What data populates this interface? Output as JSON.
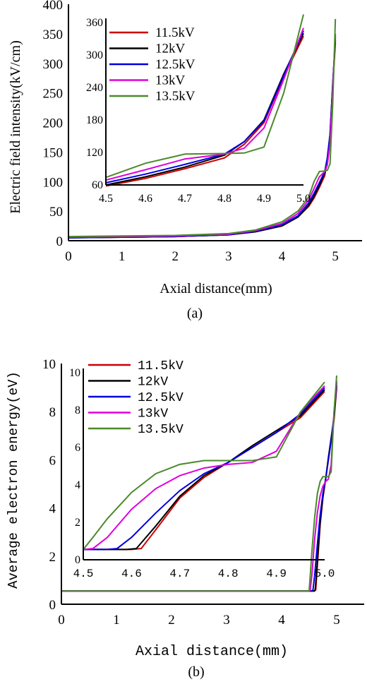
{
  "chart_data": [
    {
      "id": "a",
      "type": "line",
      "caption": "(a)",
      "xlabel": "Axial distance(mm)",
      "ylabel": "Electric field intensity(kV/cm)",
      "xlim": [
        0,
        5.5
      ],
      "ylim": [
        0,
        400
      ],
      "xticks": [
        0,
        1,
        2,
        3,
        4,
        5
      ],
      "yticks": [
        0,
        50,
        100,
        150,
        200,
        250,
        300,
        350,
        400
      ],
      "grid": false,
      "legend_position": "inside-inset",
      "series": [
        {
          "name": "11.5kV",
          "color": "#cc0000",
          "x": [
            0,
            1,
            2,
            3,
            3.5,
            4,
            4.3,
            4.5,
            4.6,
            4.7,
            4.8,
            4.85,
            4.9,
            4.95,
            5.0
          ],
          "y": [
            5,
            6,
            7,
            10,
            15,
            25,
            40,
            58,
            72,
            90,
            110,
            135,
            175,
            260,
            335
          ]
        },
        {
          "name": "12kV",
          "color": "#000000",
          "x": [
            0,
            1,
            2,
            3,
            3.5,
            4,
            4.3,
            4.5,
            4.6,
            4.7,
            4.8,
            4.85,
            4.9,
            4.95,
            5.0
          ],
          "y": [
            5,
            6,
            7,
            10,
            15,
            25,
            40,
            60,
            75,
            93,
            115,
            140,
            180,
            265,
            340
          ]
        },
        {
          "name": "12.5kV",
          "color": "#0000dd",
          "x": [
            0,
            1,
            2,
            3,
            3.5,
            4,
            4.3,
            4.5,
            4.6,
            4.7,
            4.8,
            4.85,
            4.9,
            4.95,
            5.0
          ],
          "y": [
            5,
            6,
            7,
            10,
            16,
            27,
            42,
            64,
            80,
            98,
            117,
            140,
            178,
            262,
            345
          ]
        },
        {
          "name": "13kV",
          "color": "#dd00dd",
          "x": [
            0,
            1,
            2,
            3,
            3.5,
            4,
            4.3,
            4.5,
            4.6,
            4.7,
            4.8,
            4.85,
            4.9,
            4.95,
            5.0
          ],
          "y": [
            6,
            7,
            8,
            11,
            17,
            29,
            46,
            69,
            88,
            108,
            117,
            128,
            165,
            255,
            350
          ]
        },
        {
          "name": "13.5kV",
          "color": "#4a8a2a",
          "x": [
            0,
            1,
            2,
            3,
            3.5,
            4,
            4.3,
            4.5,
            4.6,
            4.7,
            4.8,
            4.85,
            4.9,
            4.95,
            5.0
          ],
          "y": [
            7,
            8,
            9,
            12,
            18,
            32,
            50,
            74,
            100,
            117,
            118,
            119,
            130,
            230,
            375
          ]
        }
      ],
      "inset": {
        "xlim": [
          4.5,
          5.0
        ],
        "ylim": [
          60,
          360
        ],
        "xticks": [
          "4.5",
          "4.6",
          "4.7",
          "4.8",
          "4.9",
          "5.0"
        ],
        "yticks": [
          "60",
          "120",
          "180",
          "240",
          "300",
          "360"
        ]
      }
    },
    {
      "id": "b",
      "type": "line",
      "caption": "(b)",
      "xlabel": "Axial distance(mm)",
      "ylabel": "Average electron energy(eV)",
      "xlim": [
        0,
        5.5
      ],
      "ylim": [
        0,
        10
      ],
      "xticks": [
        0,
        1,
        2,
        3,
        4,
        5
      ],
      "yticks": [
        0,
        2,
        4,
        6,
        8,
        10
      ],
      "grid": false,
      "legend_position": "inside-inset",
      "series": [
        {
          "name": "11.5kV",
          "color": "#cc0000",
          "x": [
            0,
            4.5,
            4.6,
            4.62,
            4.65,
            4.7,
            4.75,
            4.8,
            4.85,
            4.9,
            4.95,
            5.0
          ],
          "y": [
            0.55,
            0.55,
            0.55,
            0.6,
            1.6,
            3.3,
            4.4,
            5.2,
            6.0,
            6.8,
            7.6,
            9.0
          ]
        },
        {
          "name": "12kV",
          "color": "#000000",
          "x": [
            0,
            4.5,
            4.59,
            4.61,
            4.65,
            4.7,
            4.75,
            4.8,
            4.85,
            4.9,
            4.95,
            5.0
          ],
          "y": [
            0.55,
            0.55,
            0.55,
            0.6,
            1.8,
            3.4,
            4.5,
            5.2,
            6.1,
            6.9,
            7.7,
            9.1
          ]
        },
        {
          "name": "12.5kV",
          "color": "#0000dd",
          "x": [
            0,
            4.5,
            4.55,
            4.57,
            4.6,
            4.65,
            4.7,
            4.75,
            4.8,
            4.85,
            4.9,
            4.95,
            5.0
          ],
          "y": [
            0.55,
            0.55,
            0.55,
            0.6,
            1.2,
            2.5,
            3.7,
            4.6,
            5.2,
            6.0,
            6.8,
            7.8,
            9.2
          ]
        },
        {
          "name": "13kV",
          "color": "#dd00dd",
          "x": [
            0,
            4.5,
            4.52,
            4.55,
            4.6,
            4.65,
            4.7,
            4.75,
            4.8,
            4.85,
            4.9,
            4.95,
            5.0
          ],
          "y": [
            0.55,
            0.55,
            0.6,
            1.2,
            2.7,
            3.8,
            4.5,
            4.9,
            5.1,
            5.2,
            5.8,
            7.9,
            9.3
          ]
        },
        {
          "name": "13.5kV",
          "color": "#4a8a2a",
          "x": [
            0,
            4.5,
            4.52,
            4.55,
            4.6,
            4.65,
            4.7,
            4.75,
            4.8,
            4.85,
            4.9,
            4.95,
            5.0
          ],
          "y": [
            0.55,
            0.55,
            1.2,
            2.2,
            3.6,
            4.6,
            5.1,
            5.3,
            5.3,
            5.3,
            5.5,
            7.9,
            9.5
          ]
        }
      ],
      "inset": {
        "xlim": [
          4.5,
          5.0
        ],
        "ylim": [
          0,
          10
        ],
        "xticks": [
          "4.5",
          "4.6",
          "4.7",
          "4.8",
          "4.9",
          "5.0"
        ],
        "yticks": [
          "0",
          "2",
          "4",
          "6",
          "8",
          "10"
        ]
      }
    }
  ]
}
